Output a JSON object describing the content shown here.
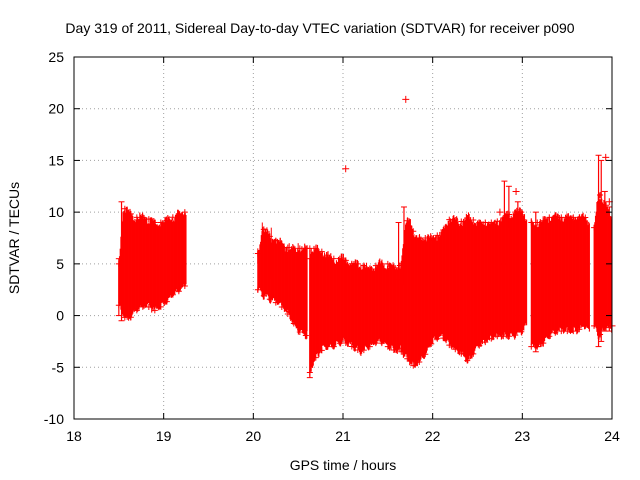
{
  "chart_data": {
    "type": "scatter",
    "title": "Day 319 of 2011, Sidereal Day-to-day VTEC variation (SDTVAR) for receiver p090",
    "xlabel": "GPS time / hours",
    "ylabel": "SDTVAR / TECUs",
    "xlim": [
      18,
      24
    ],
    "ylim": [
      -10,
      25
    ],
    "xticks": [
      "18",
      "19",
      "20",
      "21",
      "22",
      "23",
      "24"
    ],
    "yticks": [
      "-10",
      "-5",
      "0",
      "5",
      "10",
      "15",
      "20",
      "25"
    ],
    "grid": true,
    "marker_color": "#ff0000",
    "series": [
      {
        "name": "SDTVAR",
        "segments": [
          {
            "x": [
              18.5,
              18.55,
              18.6,
              18.7,
              18.8,
              18.9,
              19.0,
              19.1,
              19.2,
              19.25
            ],
            "lower": [
              1.0,
              0.0,
              -0.5,
              0.5,
              1.0,
              0.5,
              1.0,
              2.0,
              2.5,
              3.0
            ],
            "upper": [
              5.0,
              10.5,
              10.0,
              9.5,
              9.5,
              9.0,
              9.0,
              9.5,
              10.0,
              10.0
            ]
          },
          {
            "x": [
              20.05,
              20.1,
              20.2,
              20.3,
              20.4,
              20.5,
              20.6
            ],
            "lower": [
              2.5,
              2.0,
              1.5,
              1.0,
              0.0,
              -1.5,
              -2.0
            ],
            "upper": [
              6.0,
              8.5,
              7.5,
              7.0,
              6.5,
              6.5,
              6.5
            ],
            "error_low": [
              5.0,
              3.0,
              3.5,
              2.0,
              1.5,
              -0.5,
              -1.5
            ],
            "error_high": [
              6.5,
              9.0,
              8.5,
              7.5,
              7.0,
              7.0,
              6.8
            ]
          },
          {
            "x": [
              20.63,
              20.7,
              20.8,
              20.9,
              21.0,
              21.1,
              21.2,
              21.3,
              21.4,
              21.5,
              21.6,
              21.65
            ],
            "lower": [
              -5.5,
              -4.0,
              -3.0,
              -3.0,
              -2.5,
              -3.0,
              -3.5,
              -3.0,
              -2.5,
              -3.0,
              -3.5,
              -3.0
            ],
            "upper": [
              6.5,
              6.5,
              6.0,
              5.5,
              5.5,
              5.0,
              5.0,
              4.5,
              5.0,
              5.0,
              4.5,
              5.0
            ]
          },
          {
            "x": [
              21.65,
              21.7,
              21.75,
              21.8,
              21.9,
              22.0,
              22.1,
              22.2,
              22.3,
              22.4,
              22.5,
              22.6,
              22.7,
              22.8,
              22.9,
              23.0,
              23.05
            ],
            "lower": [
              -3.5,
              -4.0,
              -4.5,
              -5.0,
              -4.0,
              -2.5,
              -2.0,
              -3.0,
              -3.5,
              -4.5,
              -3.0,
              -2.5,
              -2.0,
              -2.0,
              -2.0,
              -1.5,
              -1.0
            ],
            "upper": [
              5.0,
              9.0,
              9.5,
              7.5,
              7.5,
              7.5,
              8.0,
              9.5,
              9.0,
              9.5,
              9.0,
              9.0,
              9.0,
              9.5,
              10.0,
              10.0,
              9.5
            ]
          },
          {
            "x": [
              23.1,
              23.2,
              23.3,
              23.4,
              23.5,
              23.6,
              23.7,
              23.75
            ],
            "lower": [
              -3.0,
              -3.0,
              -2.0,
              -1.5,
              -1.5,
              -1.5,
              -1.0,
              -1.5
            ],
            "upper": [
              9.0,
              9.0,
              9.5,
              9.5,
              9.5,
              9.5,
              9.5,
              9.0
            ]
          },
          {
            "x": [
              23.8,
              23.85,
              23.9,
              23.95,
              24.0
            ],
            "lower": [
              -1.0,
              -2.0,
              -1.5,
              -1.0,
              -1.5
            ],
            "upper": [
              8.5,
              12.0,
              11.0,
              10.5,
              9.5
            ]
          }
        ],
        "spikes": [
          {
            "x": 18.5,
            "y": [
              0.0,
              5.5
            ]
          },
          {
            "x": 18.53,
            "y": [
              -0.5,
              11.0
            ]
          },
          {
            "x": 20.63,
            "y": [
              -6.0,
              5.5
            ]
          },
          {
            "x": 21.62,
            "y": [
              3.5,
              9.0
            ]
          },
          {
            "x": 21.68,
            "y": [
              3.0,
              10.5
            ]
          },
          {
            "x": 22.8,
            "y": [
              5.0,
              13.0
            ]
          },
          {
            "x": 22.85,
            "y": [
              8.5,
              12.5
            ]
          },
          {
            "x": 22.95,
            "y": [
              0.0,
              11.0
            ]
          },
          {
            "x": 23.15,
            "y": [
              -3.5,
              10.0
            ]
          },
          {
            "x": 23.18,
            "y": [
              -3.0,
              8.5
            ]
          },
          {
            "x": 23.85,
            "y": [
              -3.0,
              15.5
            ]
          },
          {
            "x": 23.88,
            "y": [
              -2.5,
              15.0
            ]
          },
          {
            "x": 23.92,
            "y": [
              -1.5,
              12.0
            ]
          },
          {
            "x": 23.97,
            "y": [
              -1.5,
              10.5
            ]
          }
        ],
        "outliers": [
          {
            "x": 21.03,
            "y": 14.2
          },
          {
            "x": 21.7,
            "y": 20.9
          },
          {
            "x": 22.75,
            "y": 10.0
          },
          {
            "x": 22.93,
            "y": 12.0
          },
          {
            "x": 23.2,
            "y": 9.0
          },
          {
            "x": 23.4,
            "y": 9.5
          },
          {
            "x": 23.93,
            "y": 15.3
          },
          {
            "x": 23.97,
            "y": 11.0
          },
          {
            "x": 24.0,
            "y": -1.0
          },
          {
            "x": 23.9,
            "y": -1.0
          }
        ]
      }
    ]
  }
}
